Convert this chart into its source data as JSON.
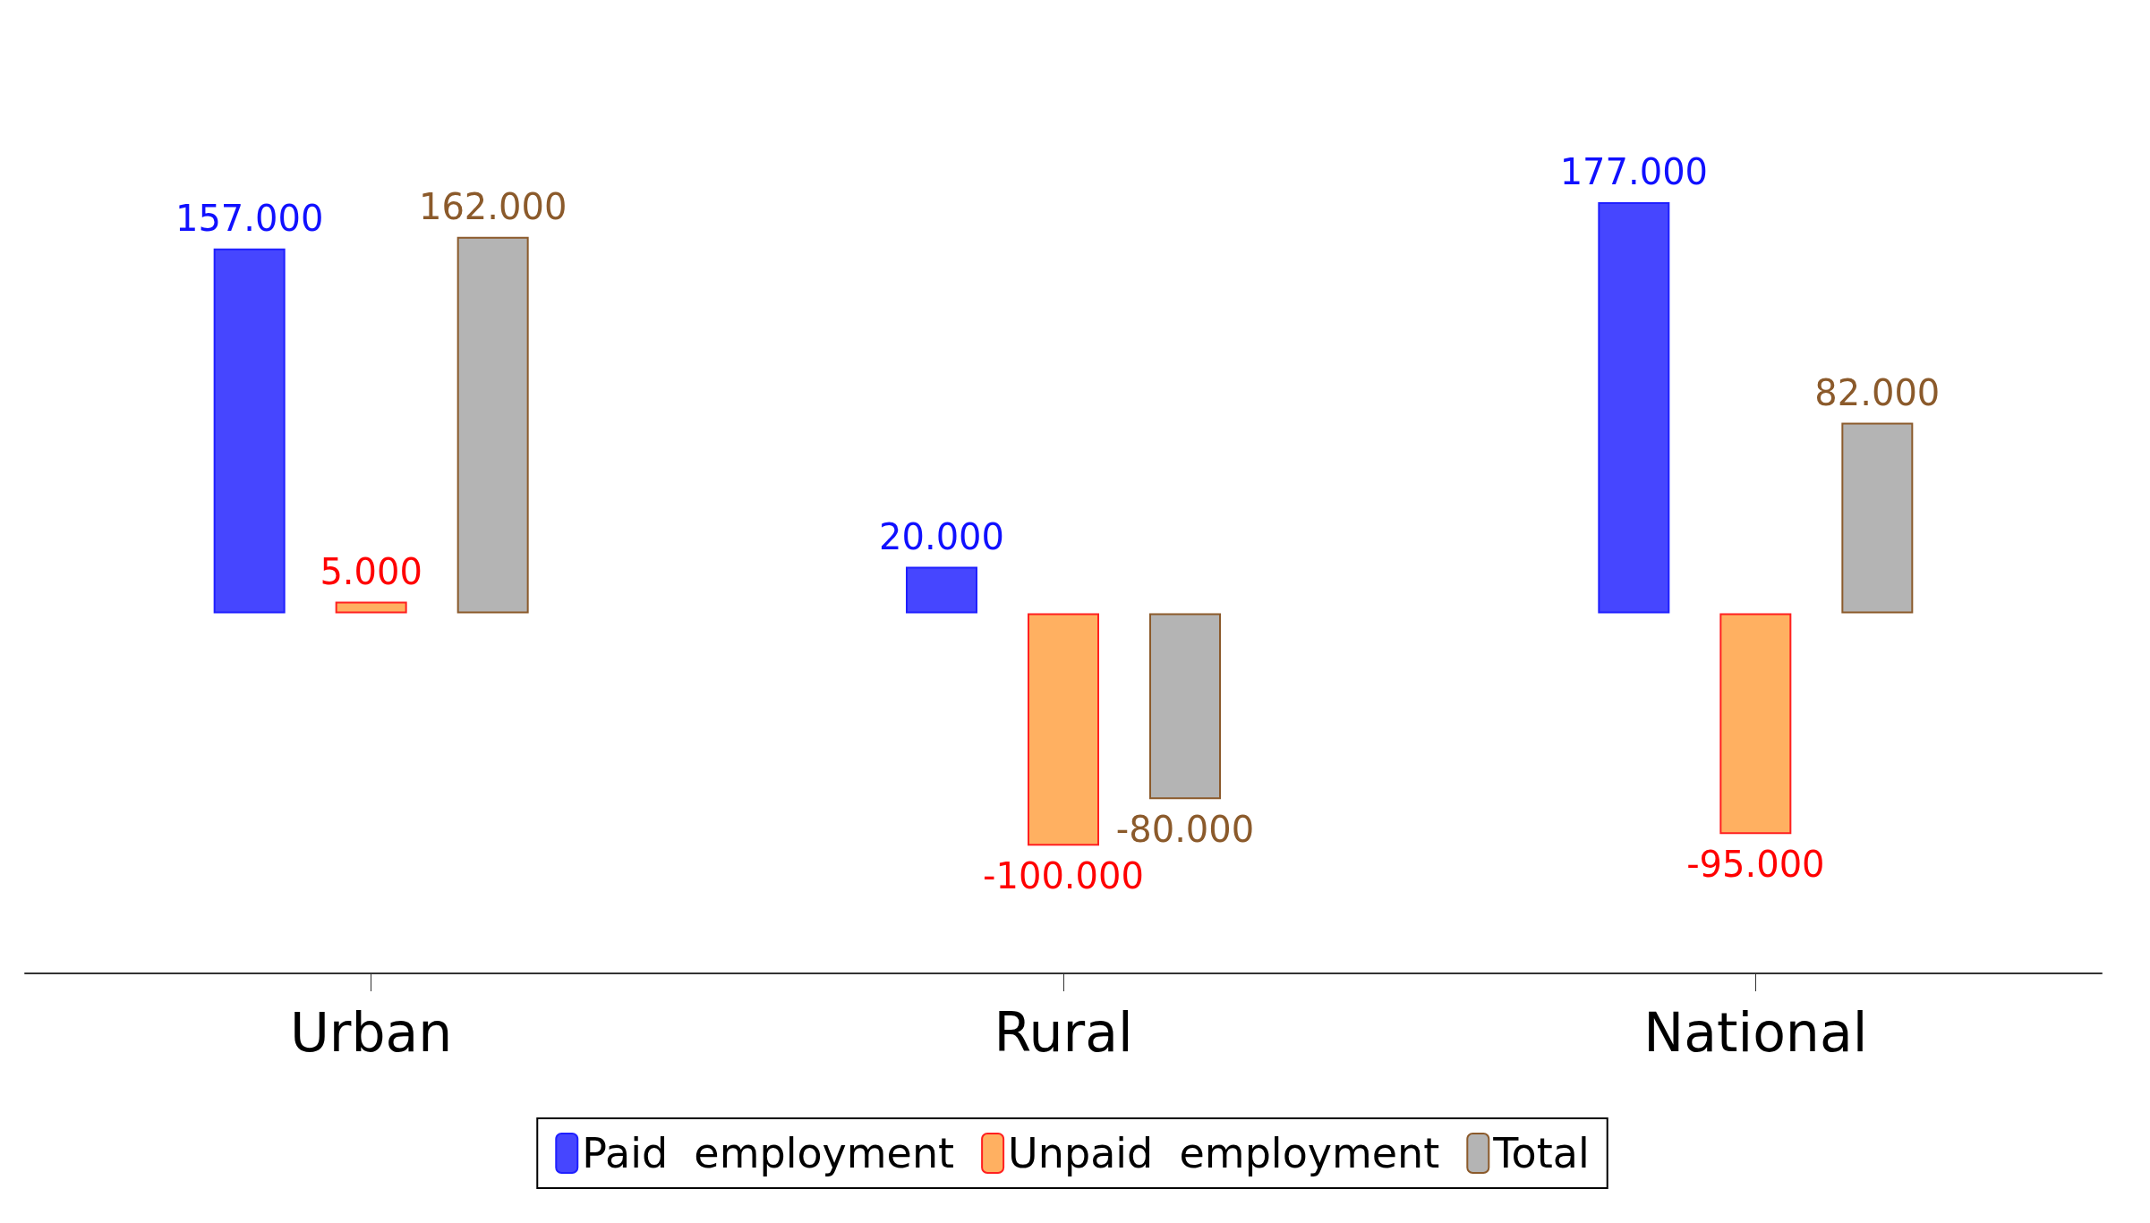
{
  "chart_data": {
    "type": "bar",
    "categories": [
      "Urban",
      "Rural",
      "National"
    ],
    "series": [
      {
        "name": "Paid  employment",
        "color": "#4646ff",
        "values": [
          157,
          20,
          177
        ],
        "value_labels": [
          "157.000",
          "20.000",
          "177.000"
        ]
      },
      {
        "name": "Unpaid  employment",
        "color": "#ffb061",
        "values": [
          5,
          -100,
          -95
        ],
        "value_labels": [
          "5.000",
          "-100.000",
          "-95.000"
        ]
      },
      {
        "name": "Total",
        "color": "#b4b4b4",
        "values": [
          162,
          -80,
          82
        ],
        "value_labels": [
          "162.000",
          "-80.000",
          "82.000"
        ]
      }
    ],
    "legend": "bottom",
    "grid": false
  }
}
